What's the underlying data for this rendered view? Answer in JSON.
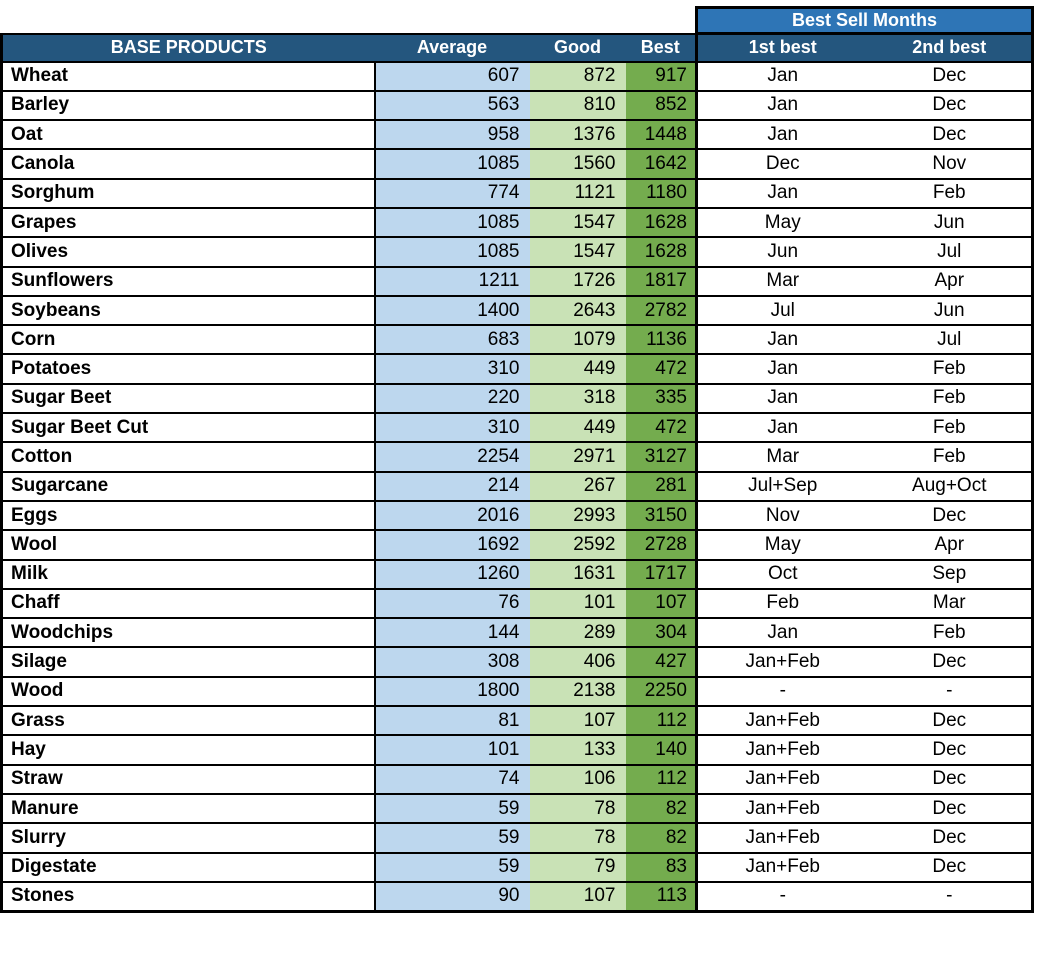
{
  "chart_data": {
    "type": "table",
    "group_header": "Best Sell Months",
    "columns": [
      "BASE PRODUCTS",
      "Average",
      "Good",
      "Best",
      "1st best",
      "2nd best"
    ],
    "rows": [
      {
        "name": "Wheat",
        "average": 607,
        "good": 872,
        "best": 917,
        "first_best": "Jan",
        "second_best": "Dec"
      },
      {
        "name": "Barley",
        "average": 563,
        "good": 810,
        "best": 852,
        "first_best": "Jan",
        "second_best": "Dec"
      },
      {
        "name": "Oat",
        "average": 958,
        "good": 1376,
        "best": 1448,
        "first_best": "Jan",
        "second_best": "Dec"
      },
      {
        "name": "Canola",
        "average": 1085,
        "good": 1560,
        "best": 1642,
        "first_best": "Dec",
        "second_best": "Nov"
      },
      {
        "name": "Sorghum",
        "average": 774,
        "good": 1121,
        "best": 1180,
        "first_best": "Jan",
        "second_best": "Feb"
      },
      {
        "name": "Grapes",
        "average": 1085,
        "good": 1547,
        "best": 1628,
        "first_best": "May",
        "second_best": "Jun"
      },
      {
        "name": "Olives",
        "average": 1085,
        "good": 1547,
        "best": 1628,
        "first_best": "Jun",
        "second_best": "Jul"
      },
      {
        "name": "Sunflowers",
        "average": 1211,
        "good": 1726,
        "best": 1817,
        "first_best": "Mar",
        "second_best": "Apr"
      },
      {
        "name": "Soybeans",
        "average": 1400,
        "good": 2643,
        "best": 2782,
        "first_best": "Jul",
        "second_best": "Jun"
      },
      {
        "name": "Corn",
        "average": 683,
        "good": 1079,
        "best": 1136,
        "first_best": "Jan",
        "second_best": "Jul"
      },
      {
        "name": "Potatoes",
        "average": 310,
        "good": 449,
        "best": 472,
        "first_best": "Jan",
        "second_best": "Feb"
      },
      {
        "name": "Sugar Beet",
        "average": 220,
        "good": 318,
        "best": 335,
        "first_best": "Jan",
        "second_best": "Feb"
      },
      {
        "name": "Sugar Beet Cut",
        "average": 310,
        "good": 449,
        "best": 472,
        "first_best": "Jan",
        "second_best": "Feb"
      },
      {
        "name": "Cotton",
        "average": 2254,
        "good": 2971,
        "best": 3127,
        "first_best": "Mar",
        "second_best": "Feb"
      },
      {
        "name": "Sugarcane",
        "average": 214,
        "good": 267,
        "best": 281,
        "first_best": "Jul+Sep",
        "second_best": "Aug+Oct"
      },
      {
        "name": "Eggs",
        "average": 2016,
        "good": 2993,
        "best": 3150,
        "first_best": "Nov",
        "second_best": "Dec"
      },
      {
        "name": "Wool",
        "average": 1692,
        "good": 2592,
        "best": 2728,
        "first_best": "May",
        "second_best": "Apr"
      },
      {
        "name": "Milk",
        "average": 1260,
        "good": 1631,
        "best": 1717,
        "first_best": "Oct",
        "second_best": "Sep"
      },
      {
        "name": "Chaff",
        "average": 76,
        "good": 101,
        "best": 107,
        "first_best": "Feb",
        "second_best": "Mar"
      },
      {
        "name": "Woodchips",
        "average": 144,
        "good": 289,
        "best": 304,
        "first_best": "Jan",
        "second_best": "Feb"
      },
      {
        "name": "Silage",
        "average": 308,
        "good": 406,
        "best": 427,
        "first_best": "Jan+Feb",
        "second_best": "Dec"
      },
      {
        "name": "Wood",
        "average": 1800,
        "good": 2138,
        "best": 2250,
        "first_best": "-",
        "second_best": "-"
      },
      {
        "name": "Grass",
        "average": 81,
        "good": 107,
        "best": 112,
        "first_best": "Jan+Feb",
        "second_best": "Dec"
      },
      {
        "name": "Hay",
        "average": 101,
        "good": 133,
        "best": 140,
        "first_best": "Jan+Feb",
        "second_best": "Dec"
      },
      {
        "name": "Straw",
        "average": 74,
        "good": 106,
        "best": 112,
        "first_best": "Jan+Feb",
        "second_best": "Dec"
      },
      {
        "name": "Manure",
        "average": 59,
        "good": 78,
        "best": 82,
        "first_best": "Jan+Feb",
        "second_best": "Dec"
      },
      {
        "name": "Slurry",
        "average": 59,
        "good": 78,
        "best": 82,
        "first_best": "Jan+Feb",
        "second_best": "Dec"
      },
      {
        "name": "Digestate",
        "average": 59,
        "good": 79,
        "best": 83,
        "first_best": "Jan+Feb",
        "second_best": "Dec"
      },
      {
        "name": "Stones",
        "average": 90,
        "good": 107,
        "best": 113,
        "first_best": "-",
        "second_best": "-"
      }
    ]
  },
  "colors": {
    "header_navy": "#24567E",
    "band_blue": "#2E75B6",
    "average_column": "#BDD7EE",
    "good_column": "#C9E2B6",
    "best_column": "#74AC4E",
    "border": "#000000",
    "header_text": "#FFFFFF",
    "body_text": "#000000"
  }
}
